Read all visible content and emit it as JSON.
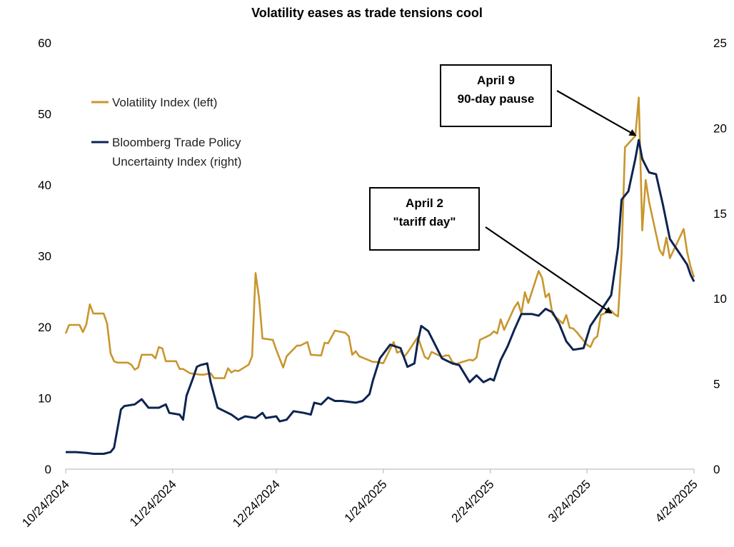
{
  "chart_data": {
    "type": "line",
    "title": "Volatility eases as trade tensions cool",
    "x_tick_labels": [
      "10/24/2024",
      "11/24/2024",
      "12/24/2024",
      "1/24/2025",
      "2/24/2025",
      "3/24/2025",
      "4/24/2025"
    ],
    "x_range": [
      "2024-10-24",
      "2025-04-24"
    ],
    "y_left": {
      "ticks": [
        0,
        10,
        20,
        30,
        40,
        50,
        60
      ],
      "range": [
        0,
        60
      ]
    },
    "y_right": {
      "ticks": [
        0,
        5,
        10,
        15,
        20,
        25
      ],
      "range": [
        0,
        25
      ]
    },
    "grid": false,
    "legend_position": "top-left",
    "colors": {
      "vix": "#C8962E",
      "tpu": "#0D2451",
      "annotation": "#000000"
    },
    "series": [
      {
        "name": "Volatility Index (left)",
        "axis": "left",
        "points": [
          [
            "2024-10-24",
            19.1
          ],
          [
            "2024-10-25",
            20.3
          ],
          [
            "2024-10-28",
            20.3
          ],
          [
            "2024-10-29",
            19.3
          ],
          [
            "2024-10-30",
            20.4
          ],
          [
            "2024-10-31",
            23.2
          ],
          [
            "2024-11-01",
            21.9
          ],
          [
            "2024-11-04",
            21.9
          ],
          [
            "2024-11-05",
            20.5
          ],
          [
            "2024-11-06",
            16.3
          ],
          [
            "2024-11-07",
            15.2
          ],
          [
            "2024-11-08",
            15.0
          ],
          [
            "2024-11-11",
            15.0
          ],
          [
            "2024-11-12",
            14.7
          ],
          [
            "2024-11-13",
            14.0
          ],
          [
            "2024-11-14",
            14.3
          ],
          [
            "2024-11-15",
            16.1
          ],
          [
            "2024-11-18",
            16.1
          ],
          [
            "2024-11-19",
            15.6
          ],
          [
            "2024-11-20",
            17.2
          ],
          [
            "2024-11-21",
            17.0
          ],
          [
            "2024-11-22",
            15.2
          ],
          [
            "2024-11-25",
            15.2
          ],
          [
            "2024-11-26",
            14.1
          ],
          [
            "2024-11-27",
            14.1
          ],
          [
            "2024-11-29",
            13.5
          ],
          [
            "2024-12-02",
            13.3
          ],
          [
            "2024-12-03",
            13.3
          ],
          [
            "2024-12-04",
            13.4
          ],
          [
            "2024-12-05",
            13.5
          ],
          [
            "2024-12-06",
            12.8
          ],
          [
            "2024-12-09",
            12.8
          ],
          [
            "2024-12-10",
            14.2
          ],
          [
            "2024-12-11",
            13.6
          ],
          [
            "2024-12-12",
            13.9
          ],
          [
            "2024-12-13",
            13.8
          ],
          [
            "2024-12-16",
            14.7
          ],
          [
            "2024-12-17",
            15.9
          ],
          [
            "2024-12-18",
            27.6
          ],
          [
            "2024-12-19",
            24.1
          ],
          [
            "2024-12-20",
            18.4
          ],
          [
            "2024-12-23",
            18.2
          ],
          [
            "2024-12-24",
            16.8
          ],
          [
            "2024-12-26",
            14.3
          ],
          [
            "2024-12-27",
            15.9
          ],
          [
            "2024-12-30",
            17.4
          ],
          [
            "2024-12-31",
            17.4
          ],
          [
            "2025-01-02",
            17.9
          ],
          [
            "2025-01-03",
            16.1
          ],
          [
            "2025-01-06",
            16.0
          ],
          [
            "2025-01-07",
            17.8
          ],
          [
            "2025-01-08",
            17.7
          ],
          [
            "2025-01-10",
            19.5
          ],
          [
            "2025-01-13",
            19.2
          ],
          [
            "2025-01-14",
            18.7
          ],
          [
            "2025-01-15",
            16.1
          ],
          [
            "2025-01-16",
            16.6
          ],
          [
            "2025-01-17",
            15.9
          ],
          [
            "2025-01-21",
            15.1
          ],
          [
            "2025-01-22",
            15.1
          ],
          [
            "2025-01-23",
            15.0
          ],
          [
            "2025-01-24",
            14.9
          ],
          [
            "2025-01-27",
            17.9
          ],
          [
            "2025-01-28",
            16.4
          ],
          [
            "2025-01-29",
            16.6
          ],
          [
            "2025-01-30",
            15.8
          ],
          [
            "2025-01-31",
            16.4
          ],
          [
            "2025-02-03",
            18.6
          ],
          [
            "2025-02-04",
            17.2
          ],
          [
            "2025-02-05",
            15.8
          ],
          [
            "2025-02-06",
            15.5
          ],
          [
            "2025-02-07",
            16.5
          ],
          [
            "2025-02-10",
            15.8
          ],
          [
            "2025-02-11",
            16.0
          ],
          [
            "2025-02-12",
            16.0
          ],
          [
            "2025-02-13",
            15.1
          ],
          [
            "2025-02-14",
            14.8
          ],
          [
            "2025-02-18",
            15.4
          ],
          [
            "2025-02-19",
            15.3
          ],
          [
            "2025-02-20",
            15.7
          ],
          [
            "2025-02-21",
            18.2
          ],
          [
            "2025-02-24",
            18.9
          ],
          [
            "2025-02-25",
            19.4
          ],
          [
            "2025-02-26",
            19.1
          ],
          [
            "2025-02-27",
            21.1
          ],
          [
            "2025-02-28",
            19.6
          ],
          [
            "2025-03-03",
            22.8
          ],
          [
            "2025-03-04",
            23.5
          ],
          [
            "2025-03-05",
            21.9
          ],
          [
            "2025-03-06",
            24.9
          ],
          [
            "2025-03-07",
            23.4
          ],
          [
            "2025-03-10",
            27.9
          ],
          [
            "2025-03-11",
            26.9
          ],
          [
            "2025-03-12",
            24.2
          ],
          [
            "2025-03-13",
            24.7
          ],
          [
            "2025-03-14",
            21.8
          ],
          [
            "2025-03-17",
            20.5
          ],
          [
            "2025-03-18",
            21.7
          ],
          [
            "2025-03-19",
            19.9
          ],
          [
            "2025-03-20",
            19.8
          ],
          [
            "2025-03-21",
            19.3
          ],
          [
            "2025-03-24",
            17.5
          ],
          [
            "2025-03-25",
            17.2
          ],
          [
            "2025-03-26",
            18.3
          ],
          [
            "2025-03-27",
            18.7
          ],
          [
            "2025-03-28",
            21.7
          ],
          [
            "2025-03-31",
            22.3
          ],
          [
            "2025-04-01",
            21.8
          ],
          [
            "2025-04-02",
            21.5
          ],
          [
            "2025-04-03",
            30.0
          ],
          [
            "2025-04-04",
            45.3
          ],
          [
            "2025-04-07",
            46.9
          ],
          [
            "2025-04-08",
            52.3
          ],
          [
            "2025-04-09",
            33.6
          ],
          [
            "2025-04-10",
            40.7
          ],
          [
            "2025-04-11",
            37.6
          ],
          [
            "2025-04-14",
            30.9
          ],
          [
            "2025-04-15",
            30.1
          ],
          [
            "2025-04-16",
            32.6
          ],
          [
            "2025-04-17",
            29.7
          ],
          [
            "2025-04-21",
            33.8
          ],
          [
            "2025-04-22",
            30.6
          ],
          [
            "2025-04-23",
            28.5
          ],
          [
            "2025-04-24",
            27.0
          ]
        ]
      },
      {
        "name": "Bloomberg Trade Policy Uncertainty Index (right)",
        "axis": "right",
        "points": [
          [
            "2024-10-24",
            1.0
          ],
          [
            "2024-10-27",
            1.0
          ],
          [
            "2024-10-30",
            0.95
          ],
          [
            "2024-11-01",
            0.9
          ],
          [
            "2024-11-04",
            0.9
          ],
          [
            "2024-11-06",
            1.0
          ],
          [
            "2024-11-07",
            1.25
          ],
          [
            "2024-11-09",
            3.5
          ],
          [
            "2024-11-10",
            3.7
          ],
          [
            "2024-11-13",
            3.8
          ],
          [
            "2024-11-15",
            4.1
          ],
          [
            "2024-11-17",
            3.6
          ],
          [
            "2024-11-20",
            3.6
          ],
          [
            "2024-11-22",
            3.8
          ],
          [
            "2024-11-23",
            3.3
          ],
          [
            "2024-11-26",
            3.2
          ],
          [
            "2024-11-27",
            2.9
          ],
          [
            "2024-11-28",
            4.3
          ],
          [
            "2024-11-30",
            5.4
          ],
          [
            "2024-12-01",
            6.0
          ],
          [
            "2024-12-02",
            6.1
          ],
          [
            "2024-12-04",
            6.2
          ],
          [
            "2024-12-05",
            5.1
          ],
          [
            "2024-12-07",
            3.6
          ],
          [
            "2024-12-09",
            3.4
          ],
          [
            "2024-12-11",
            3.2
          ],
          [
            "2024-12-13",
            2.9
          ],
          [
            "2024-12-15",
            3.1
          ],
          [
            "2024-12-18",
            3.0
          ],
          [
            "2024-12-20",
            3.3
          ],
          [
            "2024-12-21",
            3.0
          ],
          [
            "2024-12-24",
            3.1
          ],
          [
            "2024-12-25",
            2.8
          ],
          [
            "2024-12-27",
            2.9
          ],
          [
            "2024-12-29",
            3.4
          ],
          [
            "2025-01-01",
            3.3
          ],
          [
            "2025-01-03",
            3.2
          ],
          [
            "2025-01-04",
            3.9
          ],
          [
            "2025-01-06",
            3.8
          ],
          [
            "2025-01-08",
            4.2
          ],
          [
            "2025-01-10",
            4.0
          ],
          [
            "2025-01-12",
            4.0
          ],
          [
            "2025-01-16",
            3.9
          ],
          [
            "2025-01-18",
            4.0
          ],
          [
            "2025-01-20",
            4.4
          ],
          [
            "2025-01-21",
            5.2
          ],
          [
            "2025-01-23",
            6.5
          ],
          [
            "2025-01-26",
            7.3
          ],
          [
            "2025-01-29",
            7.1
          ],
          [
            "2025-01-31",
            6.0
          ],
          [
            "2025-02-02",
            6.2
          ],
          [
            "2025-02-03",
            7.5
          ],
          [
            "2025-02-04",
            8.4
          ],
          [
            "2025-02-06",
            8.1
          ],
          [
            "2025-02-08",
            7.3
          ],
          [
            "2025-02-10",
            6.5
          ],
          [
            "2025-02-13",
            6.2
          ],
          [
            "2025-02-15",
            6.1
          ],
          [
            "2025-02-18",
            5.1
          ],
          [
            "2025-02-20",
            5.5
          ],
          [
            "2025-02-22",
            5.1
          ],
          [
            "2025-02-24",
            5.3
          ],
          [
            "2025-02-25",
            5.2
          ],
          [
            "2025-02-27",
            6.4
          ],
          [
            "2025-03-01",
            7.2
          ],
          [
            "2025-03-03",
            8.2
          ],
          [
            "2025-03-05",
            9.1
          ],
          [
            "2025-03-08",
            9.1
          ],
          [
            "2025-03-10",
            9.0
          ],
          [
            "2025-03-12",
            9.4
          ],
          [
            "2025-03-14",
            9.2
          ],
          [
            "2025-03-16",
            8.5
          ],
          [
            "2025-03-18",
            7.5
          ],
          [
            "2025-03-20",
            7.0
          ],
          [
            "2025-03-23",
            7.1
          ],
          [
            "2025-03-25",
            8.4
          ],
          [
            "2025-03-27",
            9.0
          ],
          [
            "2025-03-28",
            9.3
          ],
          [
            "2025-03-31",
            10.2
          ],
          [
            "2025-04-02",
            13.0
          ],
          [
            "2025-04-03",
            15.8
          ],
          [
            "2025-04-05",
            16.3
          ],
          [
            "2025-04-07",
            18.2
          ],
          [
            "2025-04-08",
            19.3
          ],
          [
            "2025-04-09",
            18.2
          ],
          [
            "2025-04-11",
            17.4
          ],
          [
            "2025-04-13",
            17.3
          ],
          [
            "2025-04-15",
            15.5
          ],
          [
            "2025-04-17",
            13.5
          ],
          [
            "2025-04-20",
            12.6
          ],
          [
            "2025-04-22",
            12.0
          ],
          [
            "2025-04-23",
            11.4
          ],
          [
            "2025-04-24",
            11.0
          ]
        ]
      }
    ],
    "annotations": [
      {
        "id": "april2",
        "lines": [
          "April 2",
          "\"tariff day\""
        ],
        "points_to": [
          "2025-03-31",
          22.0
        ]
      },
      {
        "id": "april9",
        "lines": [
          "April 9",
          "90-day pause"
        ],
        "points_to": [
          "2025-04-07",
          47.0
        ]
      }
    ]
  }
}
